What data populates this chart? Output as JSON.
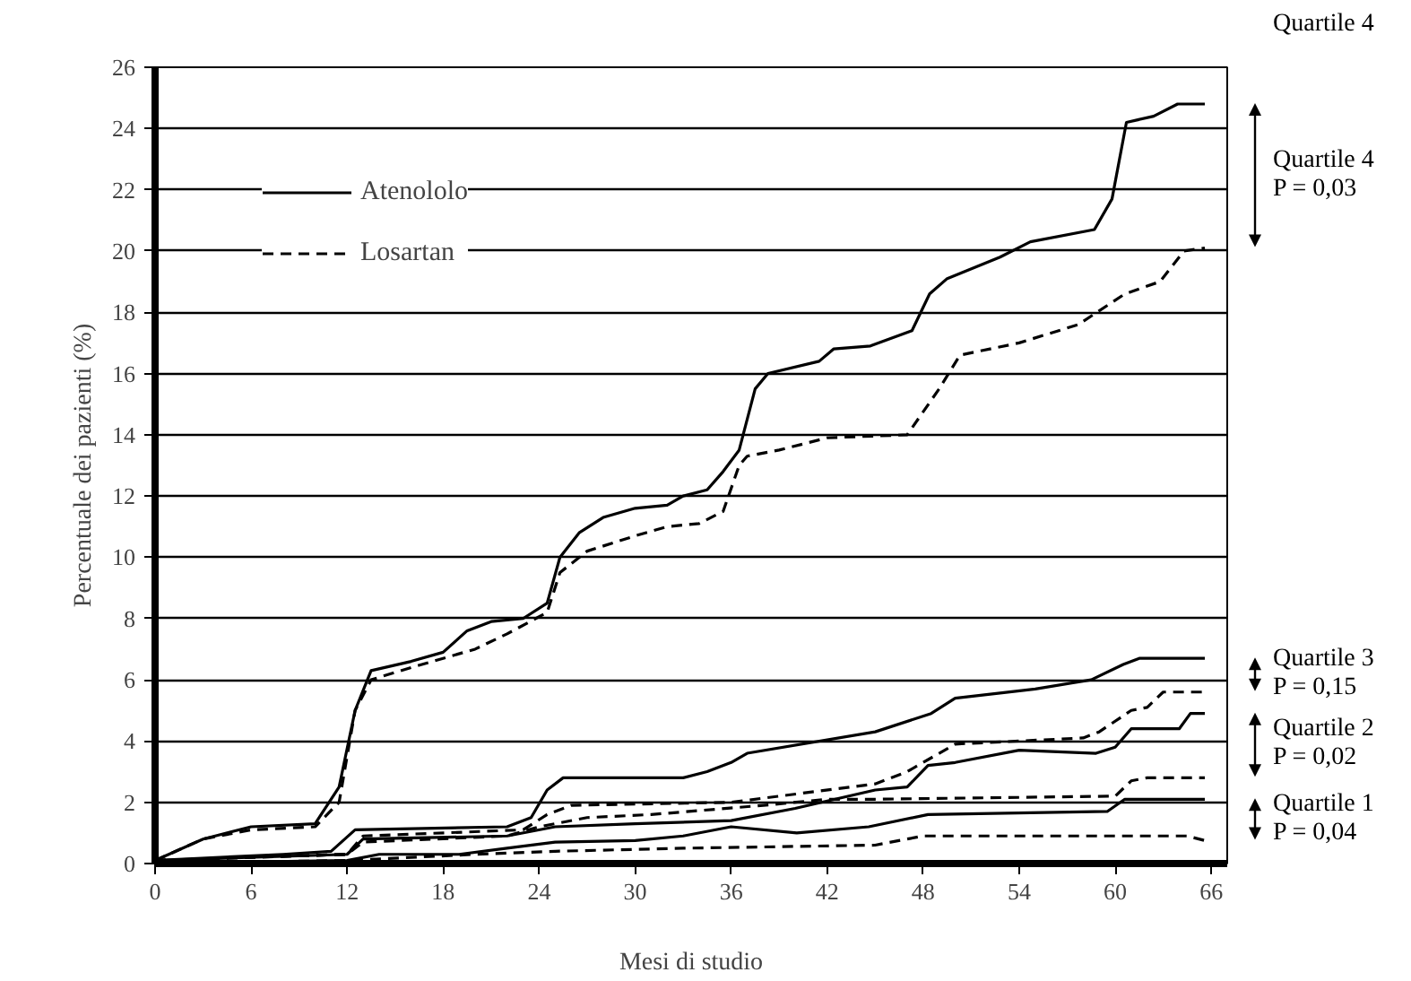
{
  "chart_data": {
    "type": "line",
    "xlabel": "Mesi di studio",
    "ylabel": "Percentuale dei pazienti (%)",
    "xlim": [
      0,
      67
    ],
    "ylim": [
      0,
      26
    ],
    "xticks": [
      0,
      6,
      12,
      18,
      24,
      30,
      36,
      42,
      48,
      54,
      60,
      66
    ],
    "yticks": [
      0,
      2,
      4,
      6,
      8,
      10,
      12,
      14,
      16,
      18,
      20,
      22,
      24,
      26
    ],
    "grid": "y",
    "legend": "top left",
    "marker": "none",
    "series": [
      {
        "name": "Atenololo",
        "color": "#000000",
        "line_style": "solid",
        "x": [
          0,
          3,
          6,
          10,
          11.5,
          12.5,
          13.5,
          16,
          18,
          19.5,
          21,
          23,
          24.5,
          25.3,
          26.5,
          28,
          30,
          32,
          33,
          34.5,
          35.5,
          36.5,
          37.5,
          38.3,
          41.5,
          42.4,
          44.7,
          47.3,
          48.4,
          49.5,
          52.8,
          54.7,
          58.7,
          59.8,
          60.7,
          62.4,
          63.9,
          65.6
        ],
        "values": [
          0.1,
          0.8,
          1.2,
          1.3,
          2.5,
          5,
          6.3,
          6.6,
          6.9,
          7.6,
          7.9,
          8,
          8.5,
          10,
          10.8,
          11.3,
          11.6,
          11.7,
          12,
          12.2,
          12.8,
          13.5,
          15.5,
          16,
          16.4,
          16.8,
          16.9,
          17.4,
          18.6,
          19.1,
          19.8,
          20.3,
          20.7,
          21.7,
          24.2,
          24.4,
          24.8,
          24.8
        ]
      },
      {
        "name": "Losartan",
        "color": "#000000",
        "line_style": "dashed",
        "x": [
          0,
          3,
          6,
          10,
          11.5,
          12.5,
          13.5,
          16,
          20,
          22,
          24.5,
          25.3,
          27,
          30,
          32,
          34,
          35.5,
          36.5,
          37,
          39,
          42,
          47,
          49,
          50.3,
          54,
          57.7,
          60.6,
          62.8,
          64.3,
          65.6
        ],
        "values": [
          0.1,
          0.8,
          1.1,
          1.2,
          2,
          5,
          6,
          6.4,
          7,
          7.5,
          8.2,
          9.5,
          10.2,
          10.7,
          11,
          11.1,
          11.5,
          13,
          13.3,
          13.5,
          13.9,
          14,
          15.5,
          16.6,
          17,
          17.6,
          18.6,
          19,
          20,
          20.1
        ]
      },
      {
        "color": "#000000",
        "line_style": "solid",
        "x": [
          0,
          8,
          11,
          12.5,
          22,
          23.5,
          24.5,
          25.5,
          33,
          34.5,
          36,
          37,
          45,
          48.5,
          50,
          55,
          58.5,
          60.5,
          61.5,
          65.6
        ],
        "values": [
          0.1,
          0.3,
          0.4,
          1.1,
          1.2,
          1.5,
          2.4,
          2.8,
          2.8,
          3,
          3.3,
          3.6,
          4.3,
          4.9,
          5.4,
          5.7,
          6,
          6.5,
          6.7,
          6.7
        ]
      },
      {
        "color": "#000000",
        "line_style": "dashed",
        "x": [
          0,
          12,
          13,
          23,
          24.5,
          26,
          36,
          45,
          47,
          49,
          50,
          58,
          59,
          61,
          62,
          63,
          65.6
        ],
        "values": [
          0.1,
          0.3,
          0.9,
          1.1,
          1.6,
          1.9,
          2,
          2.6,
          3,
          3.6,
          3.9,
          4.1,
          4.3,
          5,
          5.1,
          5.6,
          5.6
        ]
      },
      {
        "color": "#000000",
        "line_style": "solid",
        "x": [
          0,
          12,
          13,
          22,
          25,
          30,
          36,
          40,
          45,
          47,
          48.3,
          50,
          54,
          58.8,
          60,
          61,
          64,
          64.7,
          65.6
        ],
        "values": [
          0.1,
          0.3,
          0.8,
          0.9,
          1.2,
          1.3,
          1.4,
          1.8,
          2.4,
          2.5,
          3.2,
          3.3,
          3.7,
          3.6,
          3.8,
          4.4,
          4.4,
          4.9,
          4.9
        ]
      },
      {
        "color": "#000000",
        "line_style": "dashed",
        "x": [
          0,
          12,
          13,
          22,
          24,
          27,
          31,
          38,
          42,
          45,
          60,
          61,
          62,
          65.6
        ],
        "values": [
          0.1,
          0.3,
          0.7,
          0.9,
          1.2,
          1.5,
          1.6,
          1.9,
          2.1,
          2.1,
          2.2,
          2.7,
          2.8,
          2.8
        ]
      },
      {
        "color": "#000000",
        "line_style": "solid",
        "x": [
          0,
          12,
          14,
          19,
          22,
          25,
          30,
          33,
          36,
          40.1,
          44.6,
          48.3,
          59.5,
          60.6,
          65.6
        ],
        "values": [
          0,
          0.1,
          0.3,
          0.3,
          0.5,
          0.7,
          0.75,
          0.9,
          1.2,
          1,
          1.2,
          1.6,
          1.7,
          2.1,
          2.1
        ]
      },
      {
        "color": "#000000",
        "line_style": "dashed",
        "x": [
          0,
          12,
          20,
          25,
          33,
          45,
          48,
          64.5,
          65.6
        ],
        "values": [
          0,
          0.1,
          0.3,
          0.4,
          0.5,
          0.6,
          0.9,
          0.9,
          0.75
        ]
      }
    ],
    "annotations": [
      "Quartile 4",
      "Quartile 4\nP = 0,03",
      "Quartile 3\nP = 0,15",
      "Quartile 2\nP = 0,02",
      "Quartile 1\nP = 0,04"
    ]
  }
}
